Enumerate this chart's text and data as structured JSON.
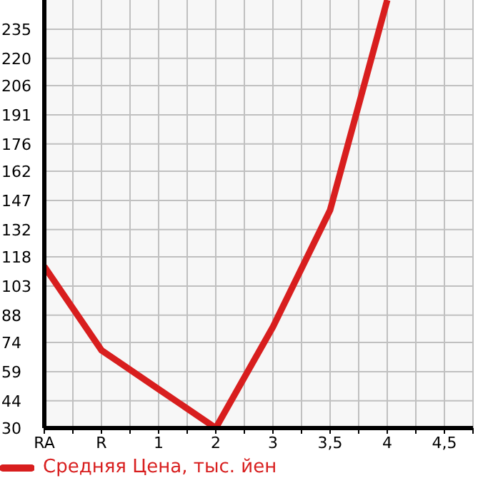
{
  "chart_data": {
    "type": "line",
    "categories": [
      "RA",
      "R",
      "1",
      "2",
      "3",
      "3,5",
      "4",
      "4,5"
    ],
    "series": [
      {
        "name": "Средняя Цена, тыс. йен",
        "color": "#d81e1e",
        "values": [
          113,
          70,
          50,
          30,
          82,
          142,
          250,
          null
        ]
      }
    ],
    "ylim": [
      30,
      250
    ],
    "yticks": [
      30,
      44,
      59,
      74,
      88,
      103,
      118,
      132,
      147,
      162,
      176,
      191,
      206,
      220,
      235
    ],
    "grid": true,
    "legend": "bottom",
    "marker": "none",
    "line_style": "solid"
  }
}
